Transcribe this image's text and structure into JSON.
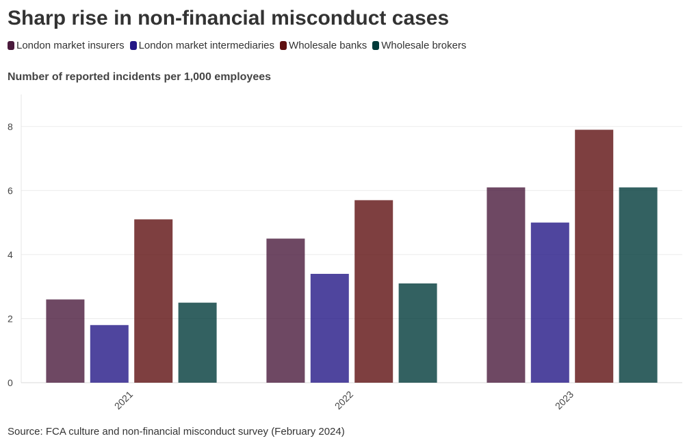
{
  "chart_data": {
    "type": "bar",
    "title": "Sharp rise in non-financial misconduct cases",
    "subtitle": "Number of reported incidents per 1,000 employees",
    "source": "Source: FCA culture and non-financial misconduct survey (February 2024)",
    "xlabel": "",
    "ylabel": "",
    "categories": [
      "2021",
      "2022",
      "2023"
    ],
    "ylim": [
      0,
      9
    ],
    "yticks": [
      0,
      2,
      4,
      6,
      8
    ],
    "ytick_labels": [
      "0",
      "2",
      "4",
      "6",
      "8"
    ],
    "grid": true,
    "legend_position": "top-left",
    "series": [
      {
        "name": "London market insurers",
        "color": "#4a1a3c",
        "values": [
          2.6,
          4.5,
          6.1
        ]
      },
      {
        "name": "London market intermediaries",
        "color": "#231686",
        "values": [
          1.8,
          3.4,
          5.0
        ]
      },
      {
        "name": "Wholesale banks",
        "color": "#5e0f10",
        "values": [
          5.1,
          5.7,
          7.9
        ]
      },
      {
        "name": "Wholesale brokers",
        "color": "#003a39",
        "values": [
          2.5,
          3.1,
          6.1
        ]
      }
    ]
  }
}
